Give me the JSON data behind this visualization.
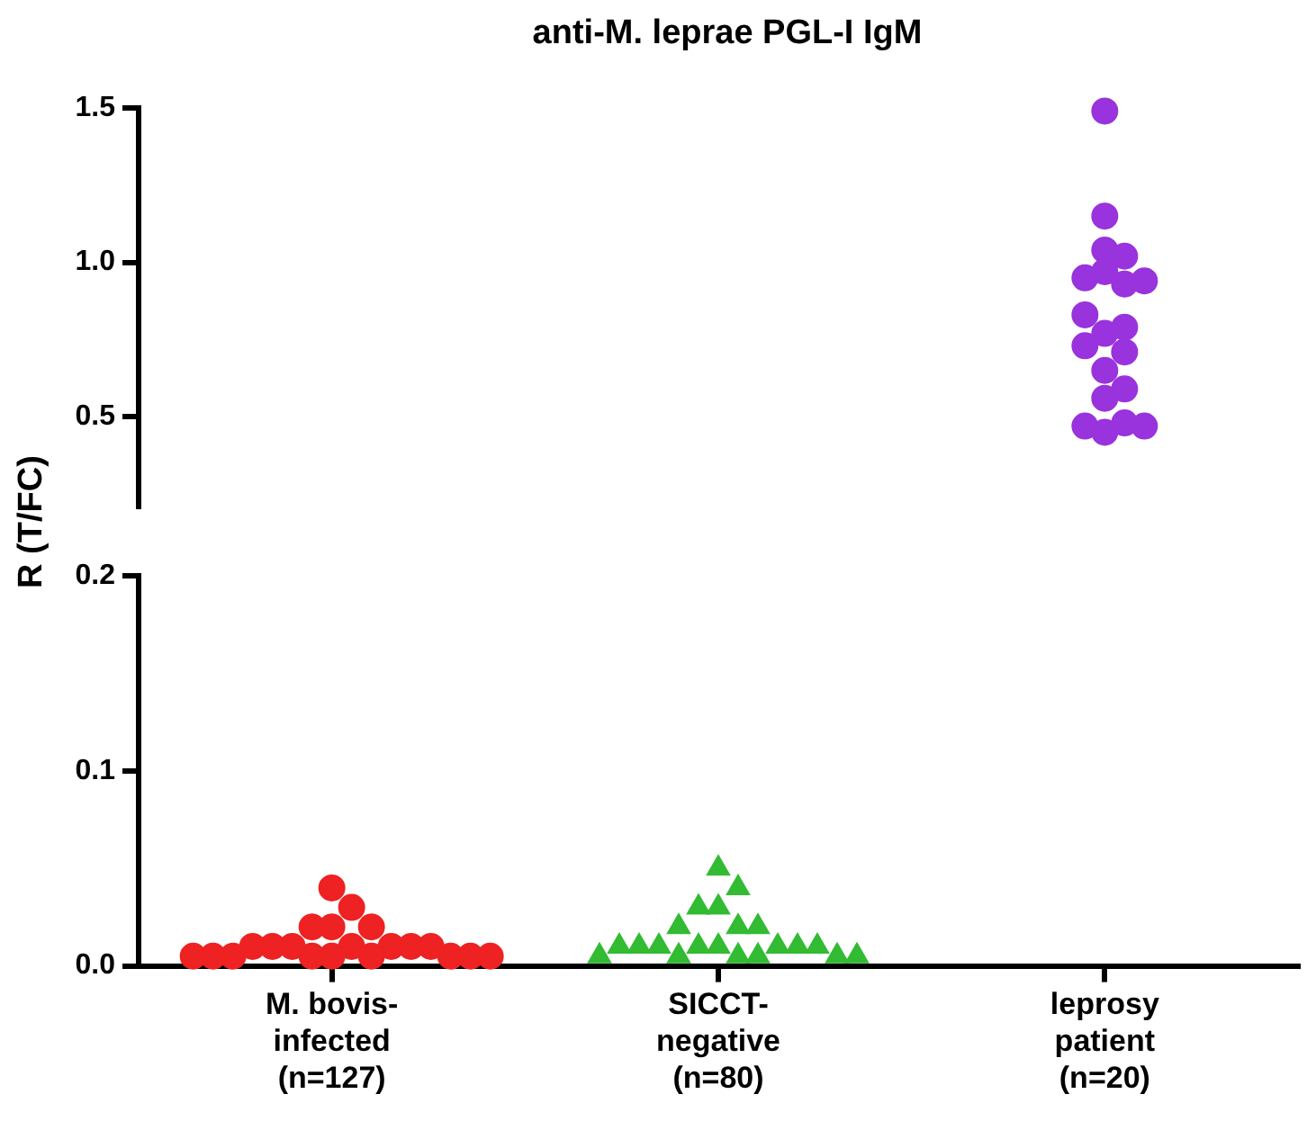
{
  "chart_data": [
    {
      "type": "scatter",
      "title": "anti-M. leprae PGL-I IgM",
      "ylabel": "R (T/FC)",
      "categories": [
        "M. bovis-\ninfected\n(n=127)",
        "SICCT-\nnegative\n(n=80)",
        "leprosy\npatient\n(n=20)"
      ],
      "ylim": [
        0.21,
        1.5
      ],
      "yticks": [
        {
          "value": 0.5,
          "label": "0.5"
        },
        {
          "value": 1.0,
          "label": "1.0"
        },
        {
          "value": 1.5,
          "label": "1.5"
        }
      ],
      "tick_labels": "y",
      "grid": false,
      "legend": false,
      "series": [
        {
          "marker": "circle",
          "color": "#9933dd",
          "x": [
            "leprosy\npatient\n(n=20)",
            "leprosy\npatient\n(n=20)",
            "leprosy\npatient\n(n=20)",
            "leprosy\npatient\n(n=20)",
            "leprosy\npatient\n(n=20)",
            "leprosy\npatient\n(n=20)",
            "leprosy\npatient\n(n=20)",
            "leprosy\npatient\n(n=20)",
            "leprosy\npatient\n(n=20)",
            "leprosy\npatient\n(n=20)",
            "leprosy\npatient\n(n=20)",
            "leprosy\npatient\n(n=20)",
            "leprosy\npatient\n(n=20)",
            "leprosy\npatient\n(n=20)",
            "leprosy\npatient\n(n=20)",
            "leprosy\npatient\n(n=20)",
            "leprosy\npatient\n(n=20)",
            "leprosy\npatient\n(n=20)",
            "leprosy\npatient\n(n=20)",
            "leprosy\npatient\n(n=20)"
          ],
          "values": [
            1.49,
            1.15,
            1.04,
            1.02,
            0.97,
            0.93,
            0.95,
            0.94,
            0.77,
            0.79,
            0.83,
            0.73,
            0.71,
            0.65,
            0.59,
            0.56,
            0.45,
            0.48,
            0.47,
            0.47
          ]
        }
      ]
    },
    {
      "type": "scatter",
      "categories": [
        "M. bovis-\ninfected\n(n=127)",
        "SICCT-\nnegative\n(n=80)",
        "leprosy\npatient\n(n=20)"
      ],
      "ylim": [
        0,
        0.2
      ],
      "yticks": [
        {
          "value": 0,
          "label": "0.0"
        },
        {
          "value": 0.1,
          "label": "0.1"
        },
        {
          "value": 0.2,
          "label": "0.2"
        }
      ],
      "grid": false,
      "legend": false,
      "series": [
        {
          "marker": "circle",
          "color": "#ee2222",
          "x": [
            "M. bovis-\ninfected\n(n=127)",
            "M. bovis-\ninfected\n(n=127)",
            "M. bovis-\ninfected\n(n=127)",
            "M. bovis-\ninfected\n(n=127)",
            "M. bovis-\ninfected\n(n=127)",
            "M. bovis-\ninfected\n(n=127)",
            "M. bovis-\ninfected\n(n=127)",
            "M. bovis-\ninfected\n(n=127)",
            "M. bovis-\ninfected\n(n=127)",
            "M. bovis-\ninfected\n(n=127)",
            "M. bovis-\ninfected\n(n=127)",
            "M. bovis-\ninfected\n(n=127)",
            "M. bovis-\ninfected\n(n=127)",
            "M. bovis-\ninfected\n(n=127)",
            "M. bovis-\ninfected\n(n=127)",
            "M. bovis-\ninfected\n(n=127)",
            "M. bovis-\ninfected\n(n=127)",
            "M. bovis-\ninfected\n(n=127)",
            "M. bovis-\ninfected\n(n=127)",
            "M. bovis-\ninfected\n(n=127)",
            "M. bovis-\ninfected\n(n=127)"
          ],
          "values": [
            0.04,
            0.03,
            0.02,
            0.02,
            0.02,
            0.01,
            0.01,
            0.01,
            0.01,
            0.01,
            0.01,
            0.01,
            0.005,
            0.005,
            0.005,
            0.005,
            0.005,
            0.005,
            0.005,
            0.005,
            0.005
          ]
        },
        {
          "marker": "triangle",
          "color": "#33bb33",
          "x": [
            "SICCT-\nnegative\n(n=80)",
            "SICCT-\nnegative\n(n=80)",
            "SICCT-\nnegative\n(n=80)",
            "SICCT-\nnegative\n(n=80)",
            "SICCT-\nnegative\n(n=80)",
            "SICCT-\nnegative\n(n=80)",
            "SICCT-\nnegative\n(n=80)",
            "SICCT-\nnegative\n(n=80)",
            "SICCT-\nnegative\n(n=80)",
            "SICCT-\nnegative\n(n=80)",
            "SICCT-\nnegative\n(n=80)",
            "SICCT-\nnegative\n(n=80)",
            "SICCT-\nnegative\n(n=80)",
            "SICCT-\nnegative\n(n=80)",
            "SICCT-\nnegative\n(n=80)",
            "SICCT-\nnegative\n(n=80)",
            "SICCT-\nnegative\n(n=80)",
            "SICCT-\nnegative\n(n=80)",
            "SICCT-\nnegative\n(n=80)",
            "SICCT-\nnegative\n(n=80)",
            "SICCT-\nnegative\n(n=80)"
          ],
          "values": [
            0.05,
            0.04,
            0.03,
            0.03,
            0.02,
            0.02,
            0.02,
            0.01,
            0.01,
            0.01,
            0.01,
            0.01,
            0.01,
            0.01,
            0.01,
            0.005,
            0.005,
            0.005,
            0.005,
            0.005,
            0.005
          ]
        }
      ]
    }
  ]
}
